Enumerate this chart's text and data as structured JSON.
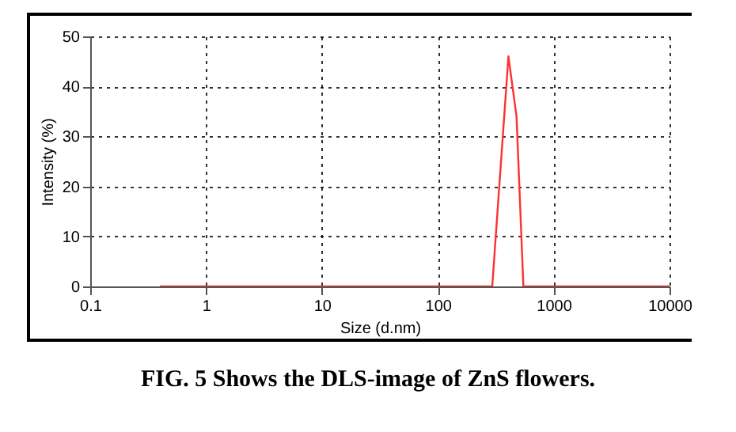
{
  "chart_data": {
    "type": "line",
    "xlabel": "Size (d.nm)",
    "ylabel": "Intensity (%)",
    "x": [
      0.4,
      295,
      407,
      478,
      548,
      10000
    ],
    "series": [
      {
        "color": "#ff3030",
        "values": [
          0,
          0,
          46,
          34,
          0,
          0
        ]
      }
    ],
    "log": "x",
    "xlim": [
      0.1,
      10000
    ],
    "xticks": [
      0.1,
      1,
      10,
      100,
      1000,
      10000
    ],
    "ylim": [
      0,
      50
    ],
    "yticks": [
      0,
      10,
      20,
      30,
      40,
      50
    ],
    "grid": true,
    "annotations": [
      "FIG. 5 Shows the DLS-image of ZnS flowers."
    ]
  }
}
